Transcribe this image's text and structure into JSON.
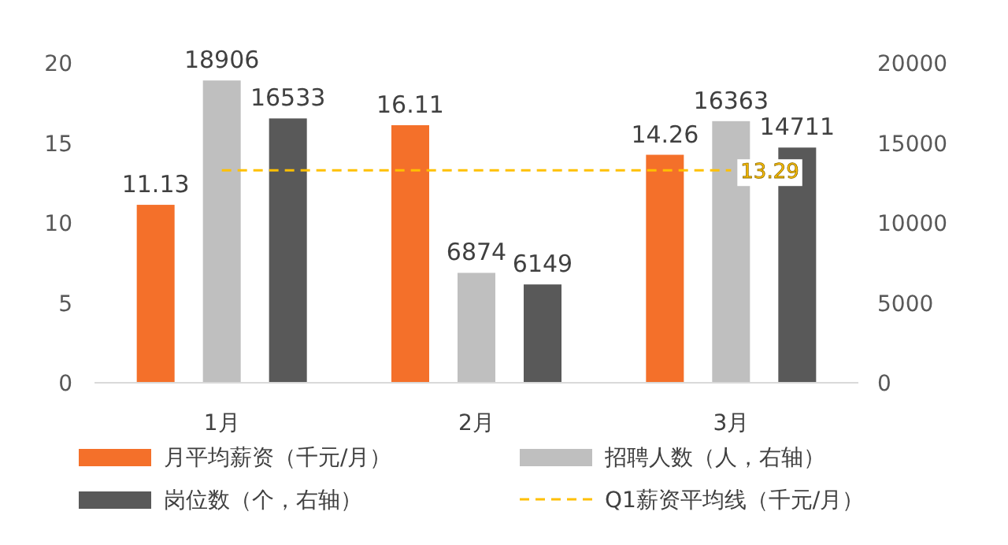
{
  "chart_data": {
    "type": "bar",
    "categories": [
      "1月",
      "2月",
      "3月"
    ],
    "series": [
      {
        "name": "月平均薪资（千元/月）",
        "color": "#f4702a",
        "values": [
          11.13,
          16.11,
          14.26
        ]
      },
      {
        "name": "招聘人数（人，右轴）",
        "color": "#bfbfbf",
        "values": [
          18906,
          6874,
          16363
        ],
        "axis": "y2"
      },
      {
        "name": "岗位数（个，右轴）",
        "color": "#595959",
        "values": [
          16533,
          6149,
          14711
        ],
        "axis": "y2"
      },
      {
        "name": "Q1薪资平均线（千元/月）",
        "type": "line",
        "color": "#ffc000",
        "line_style": "dashed",
        "marker": "none",
        "values": [
          13.29,
          13.29,
          13.29
        ],
        "value_labels": [
          null,
          null,
          "13.29"
        ]
      }
    ],
    "ylim": [
      0,
      20
    ],
    "yticks": [
      0,
      5,
      10,
      15,
      20
    ],
    "y2lim": [
      0,
      20000
    ],
    "y2ticks": [
      0,
      5000,
      10000,
      15000,
      20000
    ],
    "data_labels": true,
    "grid": false,
    "legend": "bottom"
  }
}
